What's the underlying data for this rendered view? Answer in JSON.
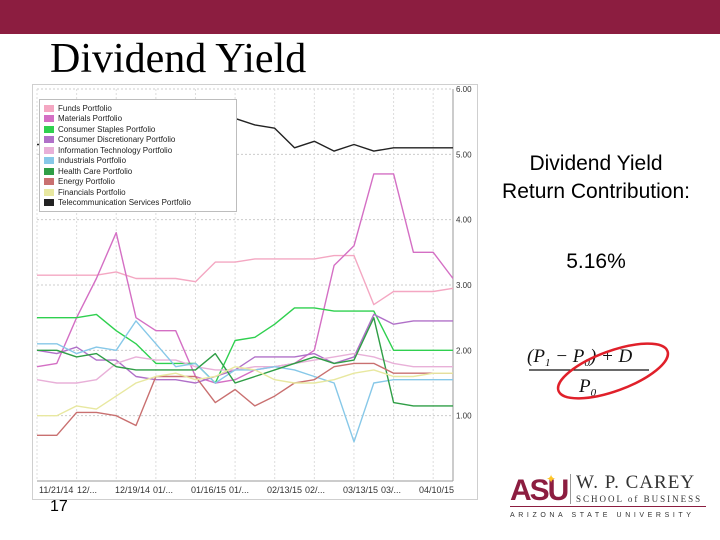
{
  "slide": {
    "title": "Dividend Yield",
    "side_heading_line1": "Dividend Yield",
    "side_heading_line2": "Return Contribution:",
    "side_value": "5.16%",
    "slide_number": "17"
  },
  "logo": {
    "mark": "ASU",
    "name": "W. P. CAREY",
    "school": "SCHOOL of BUSINESS",
    "university": "ARIZONA STATE UNIVERSITY"
  },
  "formula": {
    "numerator": "(P1 − P0) + D",
    "denominator": "P0"
  },
  "colors": {
    "brand": "#8c1d40",
    "highlight_circle": "#e0202a"
  },
  "chart_data": {
    "type": "line",
    "title": "",
    "xlabel": "",
    "ylabel": "",
    "ylim": [
      0.0,
      6.0
    ],
    "y_ticks": [
      "1.00",
      "2.00",
      "3.00",
      "4.00",
      "5.00",
      "6.00"
    ],
    "y_tick_values": [
      1,
      2,
      3,
      4,
      5,
      6
    ],
    "x_tick_labels": [
      "11/21/14",
      "12/...",
      "12/19/14",
      "01/...",
      "01/16/15",
      "01/...",
      "02/13/15",
      "02/...",
      "03/13/15",
      "03/...",
      "04/10/15"
    ],
    "x": [
      "11/21/14",
      "11/28/14",
      "12/05/14",
      "12/12/14",
      "12/19/14",
      "12/26/14",
      "01/02/15",
      "01/09/15",
      "01/16/15",
      "01/23/15",
      "01/30/15",
      "02/06/15",
      "02/13/15",
      "02/20/15",
      "02/27/15",
      "03/06/15",
      "03/13/15",
      "03/20/15",
      "03/27/15",
      "04/03/15",
      "04/10/15",
      "04/17/15"
    ],
    "legend_position": "top-left",
    "grid": true,
    "series": [
      {
        "name": "Funds Portfolio",
        "color": "#f4a7c2",
        "values": [
          3.15,
          3.15,
          3.15,
          3.15,
          3.2,
          3.1,
          3.1,
          3.1,
          3.05,
          3.35,
          3.35,
          3.4,
          3.4,
          3.4,
          3.4,
          3.45,
          3.45,
          2.7,
          2.9,
          2.9,
          2.9,
          2.95
        ]
      },
      {
        "name": "Materials Portfolio",
        "color": "#d46fc4",
        "values": [
          1.75,
          1.8,
          2.5,
          3.1,
          3.8,
          2.5,
          2.3,
          2.3,
          1.6,
          1.5,
          1.55,
          1.7,
          1.75,
          1.8,
          2.0,
          3.3,
          3.6,
          4.7,
          4.7,
          3.5,
          3.5,
          3.1
        ]
      },
      {
        "name": "Consumer Staples Portfolio",
        "color": "#2fd04f",
        "values": [
          2.5,
          2.5,
          2.5,
          2.55,
          2.3,
          2.1,
          1.8,
          1.8,
          1.8,
          1.5,
          2.15,
          2.2,
          2.4,
          2.65,
          2.65,
          2.6,
          2.6,
          2.6,
          2.0,
          2.0,
          2.0,
          2.0
        ]
      },
      {
        "name": "Consumer Discretionary Portfolio",
        "color": "#b070c8",
        "values": [
          2.0,
          1.95,
          2.05,
          1.85,
          1.85,
          1.6,
          1.55,
          1.55,
          1.5,
          1.6,
          1.7,
          1.9,
          1.9,
          1.9,
          1.95,
          1.8,
          1.9,
          2.55,
          2.4,
          2.45,
          2.45,
          2.45
        ]
      },
      {
        "name": "Information Technology Portfolio",
        "color": "#e8b0d8",
        "values": [
          1.55,
          1.5,
          1.5,
          1.55,
          1.8,
          1.9,
          1.85,
          1.85,
          1.75,
          1.7,
          1.7,
          1.75,
          1.75,
          1.8,
          1.85,
          1.9,
          1.95,
          1.9,
          1.8,
          1.75,
          1.75,
          1.75
        ]
      },
      {
        "name": "Industrials Portfolio",
        "color": "#87c8e8",
        "values": [
          2.1,
          2.1,
          1.95,
          2.05,
          2.0,
          2.45,
          2.1,
          1.75,
          1.8,
          1.5,
          1.7,
          1.7,
          1.75,
          1.7,
          1.6,
          1.5,
          0.6,
          1.5,
          1.55,
          1.55,
          1.55,
          1.55
        ]
      },
      {
        "name": "Health Care Portfolio",
        "color": "#2f9e46",
        "values": [
          2.0,
          2.0,
          1.9,
          1.95,
          1.75,
          1.7,
          1.7,
          1.7,
          1.7,
          1.95,
          1.5,
          1.6,
          1.7,
          1.8,
          1.9,
          1.8,
          1.85,
          2.5,
          1.2,
          1.15,
          1.15,
          1.15
        ]
      },
      {
        "name": "Energy Portfolio",
        "color": "#c97070",
        "values": [
          0.7,
          0.7,
          1.05,
          1.05,
          1.0,
          0.85,
          1.6,
          1.6,
          1.6,
          1.2,
          1.4,
          1.15,
          1.3,
          1.5,
          1.55,
          1.75,
          1.8,
          1.8,
          1.65,
          1.65,
          1.65,
          1.65
        ]
      },
      {
        "name": "Financials Portfolio",
        "color": "#e8e8a0",
        "values": [
          1.0,
          1.0,
          1.15,
          1.1,
          1.3,
          1.5,
          1.6,
          1.65,
          1.55,
          1.6,
          1.75,
          1.7,
          1.55,
          1.5,
          1.5,
          1.55,
          1.65,
          1.7,
          1.6,
          1.6,
          1.65,
          1.65
        ]
      },
      {
        "name": "Telecommunication Services Portfolio",
        "color": "#222222",
        "values": [
          5.15,
          5.15,
          5.15,
          5.15,
          5.15,
          5.2,
          5.2,
          5.3,
          5.4,
          5.5,
          5.55,
          5.45,
          5.4,
          5.1,
          5.2,
          5.05,
          5.15,
          5.05,
          5.1,
          5.1,
          5.1,
          5.1
        ]
      }
    ]
  }
}
